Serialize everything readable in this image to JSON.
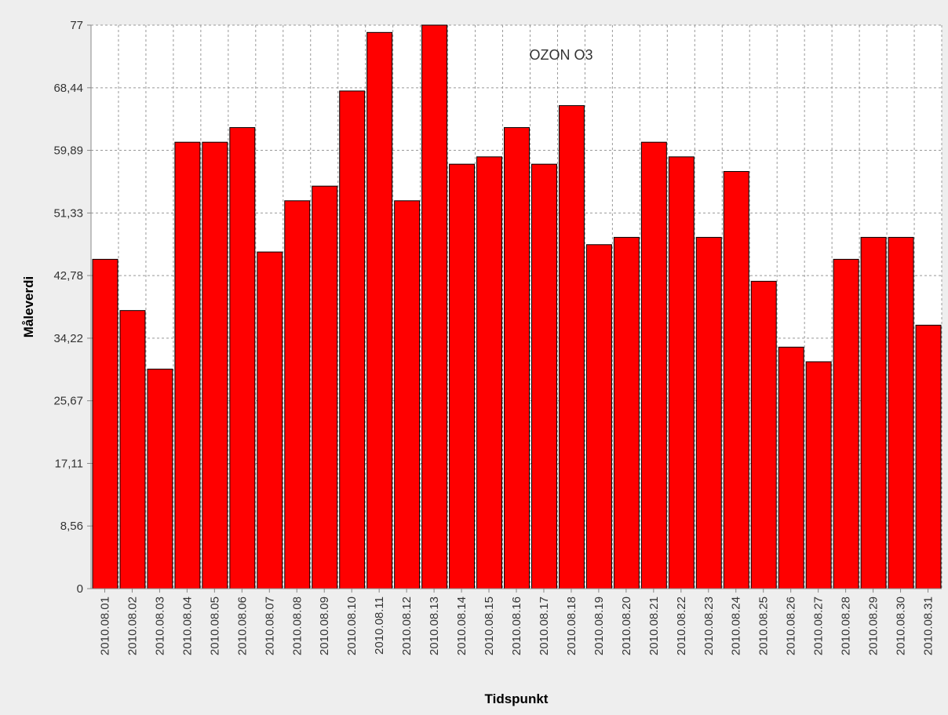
{
  "chart_data": {
    "type": "bar",
    "title": "OZON O3",
    "x_label": "Tidspunkt",
    "y_label": "Måleverdi",
    "color": "#ff0000",
    "grid": true,
    "categories": [
      "2010.08.01",
      "2010.08.02",
      "2010.08.03",
      "2010.08.04",
      "2010.08.05",
      "2010.08.06",
      "2010.08.07",
      "2010.08.08",
      "2010.08.09",
      "2010.08.10",
      "2010.08.11",
      "2010.08.12",
      "2010.08.13",
      "2010.08.14",
      "2010.08.15",
      "2010.08.16",
      "2010.08.17",
      "2010.08.18",
      "2010.08.19",
      "2010.08.20",
      "2010.08.21",
      "2010.08.22",
      "2010.08.23",
      "2010.08.24",
      "2010.08.25",
      "2010.08.26",
      "2010.08.27",
      "2010.08.28",
      "2010.08.29",
      "2010.08.30",
      "2010.08.31"
    ],
    "values": [
      45,
      38,
      30,
      61,
      61,
      63,
      46,
      53,
      55,
      68,
      76,
      53,
      77,
      58,
      59,
      63,
      58,
      66,
      47,
      48,
      61,
      59,
      48,
      57,
      42,
      33,
      31,
      45,
      48,
      48,
      36
    ],
    "ylim": [
      0,
      77
    ],
    "yticks": [
      0,
      {
        "value": 8.56,
        "label": "8,56"
      },
      {
        "value": 17.11,
        "label": "17,11"
      },
      {
        "value": 25.67,
        "label": "25,67"
      },
      {
        "value": 34.22,
        "label": "34,22"
      },
      {
        "value": 42.78,
        "label": "42,78"
      },
      {
        "value": 51.33,
        "label": "51,33"
      },
      {
        "value": 59.89,
        "label": "59,89"
      },
      {
        "value": 68.44,
        "label": "68,44"
      },
      77
    ]
  }
}
